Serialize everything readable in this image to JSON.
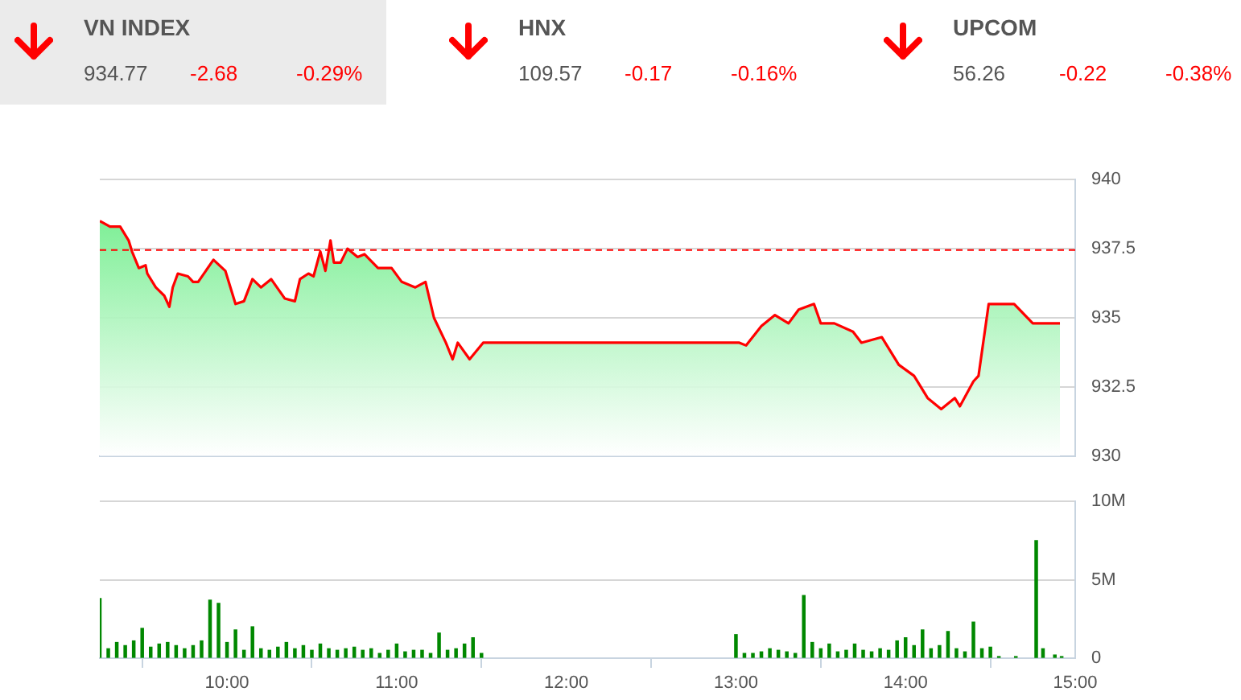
{
  "chart_data": [
    {
      "type": "other",
      "categories": [
        "VN INDEX",
        "HNX",
        "UPCOM"
      ],
      "data_labels": true,
      "series": [
        {
          "values": [
            934.77,
            109.57,
            56.26
          ]
        },
        {
          "color": "#ff0000",
          "values": [
            -2.68,
            -0.17,
            -0.22
          ]
        },
        {
          "color": "#ff0000",
          "values": [
            -0.29,
            -0.16,
            -0.38
          ],
          "value_labels": [
            "-0.29%",
            "-0.16%",
            "-0.38%"
          ]
        }
      ]
    },
    {
      "type": "area",
      "x": [
        9.25,
        9.31,
        9.37,
        9.42,
        9.44,
        9.48,
        9.52,
        9.53,
        9.58,
        9.63,
        9.66,
        9.68,
        9.71,
        9.77,
        9.8,
        9.83,
        9.92,
        9.99,
        10.05,
        10.1,
        10.15,
        10.2,
        10.26,
        10.34,
        10.4,
        10.43,
        10.48,
        10.51,
        10.55,
        10.58,
        10.61,
        10.63,
        10.67,
        10.71,
        10.77,
        10.81,
        10.89,
        10.97,
        11.03,
        11.11,
        11.17,
        11.22,
        11.29,
        11.33,
        11.36,
        11.43,
        11.51,
        13.02,
        13.06,
        13.15,
        13.23,
        13.31,
        13.37,
        13.46,
        13.5,
        13.58,
        13.69,
        13.74,
        13.86,
        13.96,
        14.05,
        14.13,
        14.21,
        14.29,
        14.32,
        14.4,
        14.43,
        14.49,
        14.64,
        14.75,
        14.91
      ],
      "series": [
        {
          "color": "#ff0000",
          "values": [
            938.5,
            938.3,
            938.3,
            937.8,
            937.4,
            936.8,
            936.9,
            936.6,
            936.1,
            935.8,
            935.4,
            936.1,
            936.6,
            936.5,
            936.3,
            936.3,
            937.1,
            936.7,
            935.5,
            935.6,
            936.4,
            936.1,
            936.4,
            935.7,
            935.6,
            936.4,
            936.6,
            936.5,
            937.4,
            936.7,
            937.8,
            937,
            937,
            937.5,
            937.2,
            937.3,
            936.8,
            936.8,
            936.3,
            936.1,
            936.3,
            935,
            934.1,
            933.5,
            934.1,
            933.5,
            934.1,
            934.1,
            934,
            934.7,
            935.1,
            934.8,
            935.3,
            935.5,
            934.8,
            934.8,
            934.5,
            934.1,
            934.3,
            933.3,
            932.9,
            932.1,
            931.7,
            932.1,
            931.8,
            932.7,
            932.9,
            935.5,
            935.5,
            934.8,
            934.8
          ]
        }
      ],
      "xlim": [
        9.25,
        15
      ],
      "ylim": [
        930,
        940
      ],
      "yticks": [
        930,
        932.5,
        935,
        937.5,
        940
      ],
      "grid": "y",
      "tick_labels": "y",
      "ref_lines": [
        {
          "axis": "y",
          "value": 937.45,
          "color": "#ff0000",
          "line_style": "dashed"
        }
      ]
    },
    {
      "type": "bar",
      "color": "#008800",
      "x": [
        9.25,
        9.3,
        9.35,
        9.4,
        9.45,
        9.5,
        9.55,
        9.6,
        9.65,
        9.7,
        9.75,
        9.8,
        9.85,
        9.9,
        9.95,
        10,
        10.05,
        10.1,
        10.15,
        10.2,
        10.25,
        10.3,
        10.35,
        10.4,
        10.45,
        10.5,
        10.55,
        10.6,
        10.65,
        10.7,
        10.75,
        10.8,
        10.85,
        10.9,
        10.95,
        11,
        11.05,
        11.1,
        11.15,
        11.2,
        11.25,
        11.3,
        11.35,
        11.4,
        11.45,
        11.5,
        13,
        13.05,
        13.1,
        13.15,
        13.2,
        13.25,
        13.3,
        13.35,
        13.4,
        13.45,
        13.5,
        13.55,
        13.6,
        13.65,
        13.7,
        13.75,
        13.8,
        13.85,
        13.9,
        13.95,
        14,
        14.05,
        14.1,
        14.15,
        14.2,
        14.25,
        14.3,
        14.35,
        14.4,
        14.45,
        14.5,
        14.55,
        14.65,
        14.77,
        14.81,
        14.88,
        14.92
      ],
      "values": [
        3.8,
        0.6,
        1,
        0.8,
        1.1,
        1.9,
        0.7,
        0.9,
        1,
        0.8,
        0.6,
        0.8,
        1.1,
        3.7,
        3.5,
        1,
        1.8,
        0.5,
        2,
        0.6,
        0.5,
        0.7,
        1,
        0.6,
        0.8,
        0.5,
        0.9,
        0.6,
        0.5,
        0.6,
        0.7,
        0.5,
        0.6,
        0.3,
        0.5,
        0.9,
        0.4,
        0.5,
        0.5,
        0.3,
        1.6,
        0.5,
        0.6,
        0.9,
        1.3,
        0.3,
        1.5,
        0.3,
        0.3,
        0.4,
        0.6,
        0.5,
        0.4,
        0.3,
        4,
        1,
        0.6,
        0.9,
        0.4,
        0.5,
        0.9,
        0.5,
        0.4,
        0.6,
        0.5,
        1.1,
        1.3,
        0.8,
        1.8,
        0.6,
        0.8,
        1.7,
        0.6,
        0.4,
        2.3,
        0.6,
        0.7,
        0.1,
        0.1,
        7.5,
        0.6,
        0.2,
        0.1
      ],
      "xlim": [
        9.25,
        15
      ],
      "xticks": [
        {
          "value": 10,
          "label": "10:00"
        },
        {
          "value": 11,
          "label": "11:00"
        },
        {
          "value": 12,
          "label": "12:00"
        },
        {
          "value": 13,
          "label": "13:00"
        },
        {
          "value": 14,
          "label": "14:00"
        },
        {
          "value": 15,
          "label": "15:00"
        }
      ],
      "ylim": [
        0,
        10
      ],
      "yticks": [
        0,
        {
          "value": 5,
          "label": "5M"
        },
        {
          "value": 10,
          "label": "10M"
        }
      ],
      "grid": "y"
    }
  ]
}
